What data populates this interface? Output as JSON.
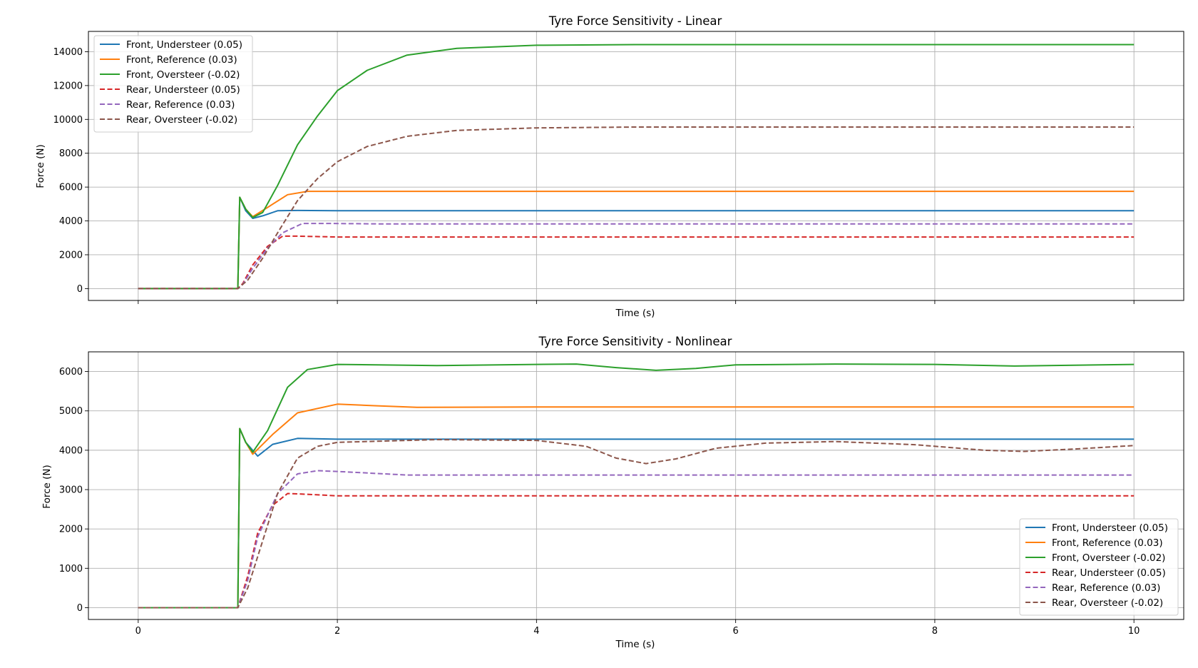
{
  "colors": {
    "front_understeer": "#1f77b4",
    "front_reference": "#ff7f0e",
    "front_oversteer": "#2ca02c",
    "rear_understeer": "#d62728",
    "rear_reference": "#9467bd",
    "rear_oversteer": "#8c564b",
    "grid": "#b0b0b0"
  },
  "chart_data": [
    {
      "type": "line",
      "title": "Tyre Force Sensitivity - Linear",
      "xlabel": "Time (s)",
      "ylabel": "Force (N)",
      "xlim": [
        -0.5,
        10.5
      ],
      "ylim": [
        -700,
        15200
      ],
      "x_ticks": [
        0,
        2,
        4,
        6,
        8,
        10
      ],
      "x_tick_labels": [
        "",
        "",
        "",
        "",
        "",
        ""
      ],
      "y_ticks": [
        0,
        2000,
        4000,
        6000,
        8000,
        10000,
        12000,
        14000
      ],
      "y_tick_labels": [
        "0",
        "2000",
        "4000",
        "6000",
        "8000",
        "10000",
        "12000",
        "14000"
      ],
      "grid": true,
      "legend_position": "top-left",
      "series": [
        {
          "name": "Front, Understeer (0.05)",
          "style": "solid",
          "color_key": "front_understeer",
          "points": [
            [
              0,
              0
            ],
            [
              1.0,
              0
            ],
            [
              1.02,
              5400
            ],
            [
              1.08,
              4600
            ],
            [
              1.15,
              4150
            ],
            [
              1.25,
              4300
            ],
            [
              1.4,
              4600
            ],
            [
              1.6,
              4620
            ],
            [
              2,
              4600
            ],
            [
              10,
              4600
            ]
          ]
        },
        {
          "name": "Front, Reference (0.03)",
          "style": "solid",
          "color_key": "front_reference",
          "points": [
            [
              0,
              0
            ],
            [
              1.0,
              0
            ],
            [
              1.02,
              5400
            ],
            [
              1.08,
              4700
            ],
            [
              1.15,
              4250
            ],
            [
              1.3,
              4800
            ],
            [
              1.5,
              5550
            ],
            [
              1.7,
              5750
            ],
            [
              2,
              5750
            ],
            [
              10,
              5750
            ]
          ]
        },
        {
          "name": "Front, Oversteer (-0.02)",
          "style": "solid",
          "color_key": "front_oversteer",
          "points": [
            [
              0,
              0
            ],
            [
              1.0,
              0
            ],
            [
              1.02,
              5400
            ],
            [
              1.08,
              4700
            ],
            [
              1.15,
              4200
            ],
            [
              1.25,
              4500
            ],
            [
              1.4,
              6100
            ],
            [
              1.6,
              8500
            ],
            [
              1.8,
              10200
            ],
            [
              2.0,
              11700
            ],
            [
              2.3,
              12900
            ],
            [
              2.7,
              13800
            ],
            [
              3.2,
              14200
            ],
            [
              4,
              14380
            ],
            [
              5,
              14420
            ],
            [
              10,
              14420
            ]
          ]
        },
        {
          "name": "Rear, Understeer (0.05)",
          "style": "dashed",
          "color_key": "rear_understeer",
          "points": [
            [
              0,
              0
            ],
            [
              1.0,
              0
            ],
            [
              1.05,
              300
            ],
            [
              1.15,
              1400
            ],
            [
              1.3,
              2500
            ],
            [
              1.45,
              3100
            ],
            [
              1.6,
              3100
            ],
            [
              2,
              3050
            ],
            [
              10,
              3050
            ]
          ]
        },
        {
          "name": "Rear, Reference (0.03)",
          "style": "dashed",
          "color_key": "rear_reference",
          "points": [
            [
              0,
              0
            ],
            [
              1.0,
              0
            ],
            [
              1.05,
              250
            ],
            [
              1.15,
              1200
            ],
            [
              1.3,
              2400
            ],
            [
              1.45,
              3300
            ],
            [
              1.65,
              3850
            ],
            [
              1.9,
              3850
            ],
            [
              2.5,
              3820
            ],
            [
              10,
              3820
            ]
          ]
        },
        {
          "name": "Rear, Oversteer (-0.02)",
          "style": "dashed",
          "color_key": "rear_oversteer",
          "points": [
            [
              0,
              0
            ],
            [
              1.0,
              0
            ],
            [
              1.1,
              500
            ],
            [
              1.25,
              1800
            ],
            [
              1.4,
              3300
            ],
            [
              1.6,
              5200
            ],
            [
              1.8,
              6500
            ],
            [
              2.0,
              7500
            ],
            [
              2.3,
              8400
            ],
            [
              2.7,
              9000
            ],
            [
              3.2,
              9350
            ],
            [
              4,
              9500
            ],
            [
              5,
              9550
            ],
            [
              10,
              9550
            ]
          ]
        }
      ]
    },
    {
      "type": "line",
      "title": "Tyre Force Sensitivity - Nonlinear",
      "xlabel": "Time (s)",
      "ylabel": "Force (N)",
      "xlim": [
        -0.5,
        10.5
      ],
      "ylim": [
        -300,
        6500
      ],
      "x_ticks": [
        0,
        2,
        4,
        6,
        8,
        10
      ],
      "x_tick_labels": [
        "0",
        "2",
        "4",
        "6",
        "8",
        "10"
      ],
      "y_ticks": [
        0,
        1000,
        2000,
        3000,
        4000,
        5000,
        6000
      ],
      "y_tick_labels": [
        "0",
        "1000",
        "2000",
        "3000",
        "4000",
        "5000",
        "6000"
      ],
      "grid": true,
      "legend_position": "bottom-right",
      "series": [
        {
          "name": "Front, Understeer (0.05)",
          "style": "solid",
          "color_key": "front_understeer",
          "points": [
            [
              0,
              0
            ],
            [
              1.0,
              0
            ],
            [
              1.02,
              4550
            ],
            [
              1.08,
              4200
            ],
            [
              1.2,
              3850
            ],
            [
              1.35,
              4150
            ],
            [
              1.6,
              4300
            ],
            [
              2,
              4280
            ],
            [
              10,
              4280
            ]
          ]
        },
        {
          "name": "Front, Reference (0.03)",
          "style": "solid",
          "color_key": "front_reference",
          "points": [
            [
              0,
              0
            ],
            [
              1.0,
              0
            ],
            [
              1.02,
              4550
            ],
            [
              1.08,
              4200
            ],
            [
              1.15,
              3900
            ],
            [
              1.35,
              4400
            ],
            [
              1.6,
              4950
            ],
            [
              2,
              5170
            ],
            [
              2.4,
              5130
            ],
            [
              2.8,
              5090
            ],
            [
              4,
              5100
            ],
            [
              10,
              5100
            ]
          ]
        },
        {
          "name": "Front, Oversteer (-0.02)",
          "style": "solid",
          "color_key": "front_oversteer",
          "points": [
            [
              0,
              0
            ],
            [
              1.0,
              0
            ],
            [
              1.02,
              4550
            ],
            [
              1.08,
              4200
            ],
            [
              1.15,
              3950
            ],
            [
              1.3,
              4500
            ],
            [
              1.5,
              5600
            ],
            [
              1.7,
              6050
            ],
            [
              2,
              6180
            ],
            [
              3,
              6150
            ],
            [
              4,
              6180
            ],
            [
              4.4,
              6190
            ],
            [
              4.8,
              6100
            ],
            [
              5.2,
              6030
            ],
            [
              5.6,
              6080
            ],
            [
              6,
              6170
            ],
            [
              7,
              6190
            ],
            [
              8,
              6180
            ],
            [
              8.8,
              6140
            ],
            [
              10,
              6180
            ]
          ]
        },
        {
          "name": "Rear, Understeer (0.05)",
          "style": "dashed",
          "color_key": "rear_understeer",
          "points": [
            [
              0,
              0
            ],
            [
              1.0,
              0
            ],
            [
              1.1,
              800
            ],
            [
              1.2,
              1900
            ],
            [
              1.35,
              2600
            ],
            [
              1.5,
              2900
            ],
            [
              1.7,
              2880
            ],
            [
              2,
              2840
            ],
            [
              10,
              2840
            ]
          ]
        },
        {
          "name": "Rear, Reference (0.03)",
          "style": "dashed",
          "color_key": "rear_reference",
          "points": [
            [
              0,
              0
            ],
            [
              1.0,
              0
            ],
            [
              1.1,
              700
            ],
            [
              1.2,
              1800
            ],
            [
              1.4,
              2900
            ],
            [
              1.6,
              3400
            ],
            [
              1.8,
              3480
            ],
            [
              2,
              3460
            ],
            [
              2.7,
              3370
            ],
            [
              4,
              3370
            ],
            [
              10,
              3370
            ]
          ]
        },
        {
          "name": "Rear, Oversteer (-0.02)",
          "style": "dashed",
          "color_key": "rear_oversteer",
          "points": [
            [
              0,
              0
            ],
            [
              1.0,
              0
            ],
            [
              1.1,
              500
            ],
            [
              1.25,
              1700
            ],
            [
              1.4,
              2900
            ],
            [
              1.6,
              3800
            ],
            [
              1.8,
              4100
            ],
            [
              2,
              4200
            ],
            [
              3,
              4270
            ],
            [
              4,
              4250
            ],
            [
              4.5,
              4100
            ],
            [
              4.8,
              3800
            ],
            [
              5.1,
              3660
            ],
            [
              5.4,
              3780
            ],
            [
              5.8,
              4050
            ],
            [
              6.3,
              4180
            ],
            [
              7,
              4220
            ],
            [
              7.8,
              4140
            ],
            [
              8.5,
              4000
            ],
            [
              8.9,
              3970
            ],
            [
              9.4,
              4030
            ],
            [
              10,
              4120
            ]
          ]
        }
      ]
    }
  ]
}
